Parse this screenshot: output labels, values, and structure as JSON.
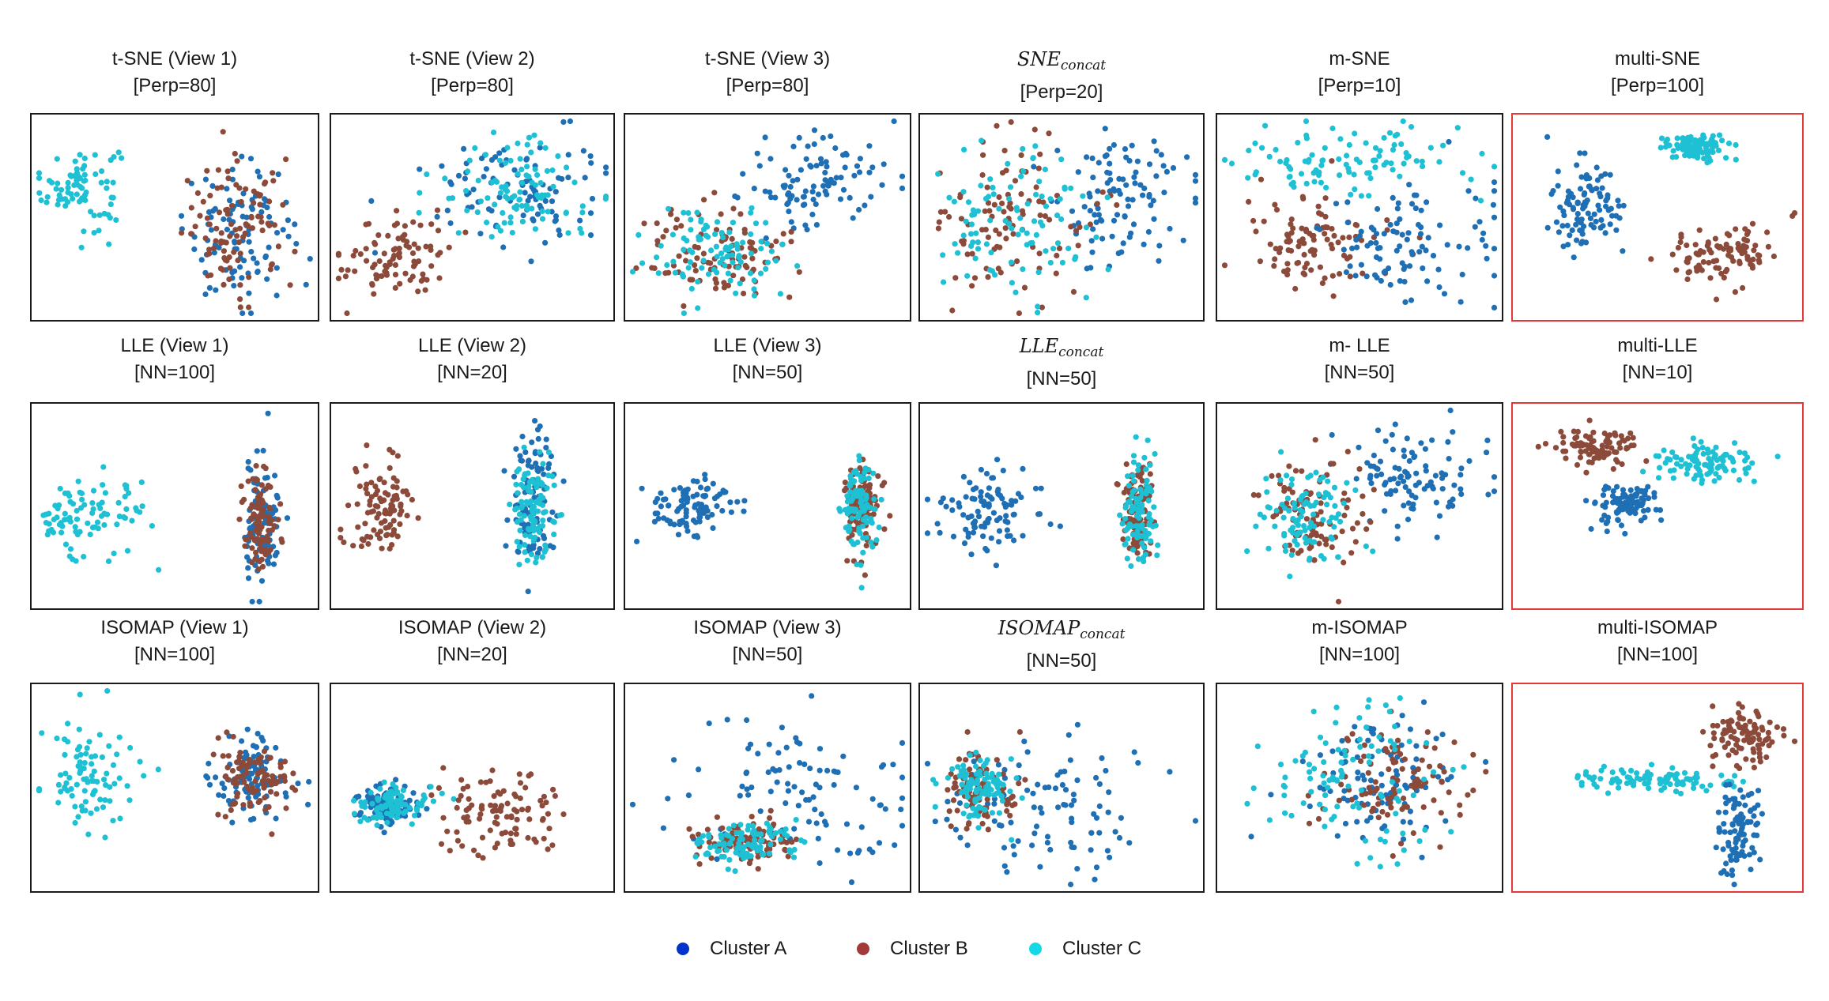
{
  "colors": {
    "A": "#1f6fb5",
    "B": "#8c4a3a",
    "C": "#1ec0d4",
    "highlight": "#e53935"
  },
  "legend": [
    {
      "name": "Cluster A",
      "color": "#0033cc"
    },
    {
      "name": "Cluster B",
      "color": "#a33a3a"
    },
    {
      "name": "Cluster C",
      "color": "#14d8e6"
    }
  ],
  "chart_data": [
    {
      "type": "scatter",
      "title": "t-SNE (View 1)",
      "param": "[Perp=80]",
      "highlight": false,
      "xlim": [
        0,
        100
      ],
      "ylim": [
        0,
        100
      ],
      "clusters": {
        "C": {
          "center": [
            16,
            66
          ],
          "spread": [
            7,
            11
          ],
          "n": 80
        },
        "A": {
          "center": [
            73,
            43
          ],
          "spread": [
            10,
            17
          ],
          "n": 100
        },
        "B": {
          "center": [
            73,
            43
          ],
          "spread": [
            10,
            17
          ],
          "n": 100
        }
      }
    },
    {
      "type": "scatter",
      "title": "t-SNE (View 2)",
      "param": "[Perp=80]",
      "highlight": false,
      "xlim": [
        0,
        100
      ],
      "ylim": [
        0,
        100
      ],
      "clusters": {
        "B": {
          "center": [
            22,
            30
          ],
          "spread": [
            10,
            11
          ],
          "n": 90
        },
        "A": {
          "center": [
            66,
            64
          ],
          "spread": [
            16,
            14
          ],
          "n": 100
        },
        "C": {
          "center": [
            66,
            64
          ],
          "spread": [
            16,
            14
          ],
          "n": 100
        }
      }
    },
    {
      "type": "scatter",
      "title": "t-SNE (View 3)",
      "param": "[Perp=80]",
      "highlight": false,
      "xlim": [
        0,
        100
      ],
      "ylim": [
        0,
        100
      ],
      "clusters": {
        "A": {
          "center": [
            68,
            68
          ],
          "spread": [
            15,
            13
          ],
          "n": 100
        },
        "B": {
          "center": [
            33,
            31
          ],
          "spread": [
            13,
            12
          ],
          "n": 100
        },
        "C": {
          "center": [
            33,
            31
          ],
          "spread": [
            13,
            12
          ],
          "n": 100
        }
      }
    },
    {
      "type": "scatter",
      "title": "SNE",
      "title_sub": "concat",
      "math": true,
      "param": "[Perp=20]",
      "highlight": false,
      "xlim": [
        0,
        100
      ],
      "ylim": [
        0,
        100
      ],
      "clusters": {
        "A": {
          "center": [
            70,
            58
          ],
          "spread": [
            13,
            18
          ],
          "n": 100
        },
        "B": {
          "center": [
            33,
            48
          ],
          "spread": [
            14,
            20
          ],
          "n": 100
        },
        "C": {
          "center": [
            33,
            48
          ],
          "spread": [
            14,
            20
          ],
          "n": 100
        }
      }
    },
    {
      "type": "scatter",
      "title": "m-SNE",
      "param": "[Perp=10]",
      "highlight": false,
      "xlim": [
        0,
        100
      ],
      "ylim": [
        0,
        100
      ],
      "clusters": {
        "C": {
          "center": [
            46,
            80
          ],
          "spread": [
            20,
            10
          ],
          "n": 100
        },
        "B": {
          "center": [
            33,
            37
          ],
          "spread": [
            14,
            13
          ],
          "n": 100
        },
        "A": {
          "center": [
            65,
            38
          ],
          "spread": [
            18,
            16
          ],
          "n": 100
        }
      }
    },
    {
      "type": "scatter",
      "title": "multi-SNE",
      "param": "[Perp=100]",
      "highlight": true,
      "xlim": [
        0,
        100
      ],
      "ylim": [
        0,
        100
      ],
      "clusters": {
        "C": {
          "center": [
            63,
            86
          ],
          "spread": [
            6,
            3.5
          ],
          "n": 100
        },
        "A": {
          "center": [
            24,
            55
          ],
          "spread": [
            6,
            10
          ],
          "n": 100
        },
        "B": {
          "center": [
            72,
            33
          ],
          "spread": [
            10,
            7
          ],
          "n": 100
        }
      }
    },
    {
      "type": "scatter",
      "title": "LLE (View 1)",
      "param": "[NN=100]",
      "highlight": false,
      "xlim": [
        0,
        100
      ],
      "ylim": [
        0,
        100
      ],
      "clusters": {
        "C": {
          "center": [
            19,
            45
          ],
          "spread": [
            10,
            10
          ],
          "n": 90
        },
        "A": {
          "center": [
            81,
            42
          ],
          "spread": [
            3,
            14
          ],
          "n": 100
        },
        "B": {
          "center": [
            81,
            42
          ],
          "spread": [
            3,
            13
          ],
          "n": 100
        }
      }
    },
    {
      "type": "scatter",
      "title": "LLE (View 2)",
      "param": "[NN=20]",
      "highlight": false,
      "xlim": [
        0,
        100
      ],
      "ylim": [
        0,
        100
      ],
      "clusters": {
        "B": {
          "center": [
            18,
            49
          ],
          "spread": [
            6,
            13
          ],
          "n": 100
        },
        "A": {
          "center": [
            72,
            55
          ],
          "spread": [
            4,
            16
          ],
          "n": 100
        },
        "C": {
          "center": [
            72,
            47
          ],
          "spread": [
            4,
            15
          ],
          "n": 100
        }
      }
    },
    {
      "type": "scatter",
      "title": "LLE (View 3)",
      "param": "[NN=50]",
      "highlight": false,
      "xlim": [
        0,
        100
      ],
      "ylim": [
        0,
        100
      ],
      "clusters": {
        "A": {
          "center": [
            22,
            50
          ],
          "spread": [
            7,
            9
          ],
          "n": 100
        },
        "B": {
          "center": [
            84,
            50
          ],
          "spread": [
            3,
            12
          ],
          "n": 100
        },
        "C": {
          "center": [
            84,
            50
          ],
          "spread": [
            3,
            12
          ],
          "n": 100
        }
      }
    },
    {
      "type": "scatter",
      "title": "LLE",
      "title_sub": "concat",
      "math": true,
      "param": "[NN=50]",
      "highlight": false,
      "xlim": [
        0,
        100
      ],
      "ylim": [
        0,
        100
      ],
      "clusters": {
        "A": {
          "center": [
            23,
            47
          ],
          "spread": [
            8,
            10
          ],
          "n": 100
        },
        "B": {
          "center": [
            78,
            46
          ],
          "spread": [
            3,
            13
          ],
          "n": 100
        },
        "C": {
          "center": [
            78,
            44
          ],
          "spread": [
            3,
            14
          ],
          "n": 100
        }
      }
    },
    {
      "type": "scatter",
      "title": "m- LLE",
      "param": "[NN=50]",
      "highlight": false,
      "xlim": [
        0,
        100
      ],
      "ylim": [
        0,
        100
      ],
      "clusters": {
        "A": {
          "center": [
            70,
            63
          ],
          "spread": [
            12,
            14
          ],
          "n": 100
        },
        "B": {
          "center": [
            34,
            45
          ],
          "spread": [
            9,
            13
          ],
          "n": 100
        },
        "C": {
          "center": [
            30,
            45
          ],
          "spread": [
            8,
            12
          ],
          "n": 100
        }
      }
    },
    {
      "type": "scatter",
      "title": "multi-LLE",
      "param": "[NN=10]",
      "highlight": true,
      "xlim": [
        0,
        100
      ],
      "ylim": [
        0,
        100
      ],
      "clusters": {
        "B": {
          "center": [
            28,
            80
          ],
          "spread": [
            8,
            5
          ],
          "n": 100
        },
        "C": {
          "center": [
            68,
            72
          ],
          "spread": [
            9,
            4.5
          ],
          "n": 100
        },
        "A": {
          "center": [
            40,
            51
          ],
          "spread": [
            6,
            6
          ],
          "n": 100
        }
      }
    },
    {
      "type": "scatter",
      "title": "ISOMAP (View 1)",
      "param": "[NN=100]",
      "highlight": false,
      "xlim": [
        0,
        100
      ],
      "ylim": [
        0,
        100
      ],
      "clusters": {
        "C": {
          "center": [
            20,
            60
          ],
          "spread": [
            8,
            14
          ],
          "n": 90
        },
        "A": {
          "center": [
            78,
            56
          ],
          "spread": [
            7,
            10
          ],
          "n": 100
        },
        "B": {
          "center": [
            78,
            56
          ],
          "spread": [
            7,
            10
          ],
          "n": 100
        }
      }
    },
    {
      "type": "scatter",
      "title": "ISOMAP (View 2)",
      "param": "[NN=20]",
      "highlight": false,
      "xlim": [
        0,
        100
      ],
      "ylim": [
        0,
        100
      ],
      "clusters": {
        "A": {
          "center": [
            20,
            41
          ],
          "spread": [
            6,
            5
          ],
          "n": 100
        },
        "C": {
          "center": [
            20,
            41
          ],
          "spread": [
            6,
            5
          ],
          "n": 100
        },
        "B": {
          "center": [
            60,
            38
          ],
          "spread": [
            12,
            11
          ],
          "n": 100
        }
      }
    },
    {
      "type": "scatter",
      "title": "ISOMAP (View 3)",
      "param": "[NN=50]",
      "highlight": false,
      "xlim": [
        0,
        100
      ],
      "ylim": [
        0,
        100
      ],
      "clusters": {
        "A": {
          "center": [
            62,
            48
          ],
          "spread": [
            24,
            17
          ],
          "n": 100
        },
        "B": {
          "center": [
            42,
            22
          ],
          "spread": [
            10,
            5
          ],
          "n": 100
        },
        "C": {
          "center": [
            42,
            22
          ],
          "spread": [
            10,
            5
          ],
          "n": 100
        }
      }
    },
    {
      "type": "scatter",
      "title": "ISOMAP",
      "title_sub": "concat",
      "math": true,
      "param": "[NN=50]",
      "highlight": false,
      "xlim": [
        0,
        100
      ],
      "ylim": [
        0,
        100
      ],
      "clusters": {
        "A": {
          "center": [
            45,
            40
          ],
          "spread": [
            20,
            18
          ],
          "n": 100
        },
        "B": {
          "center": [
            20,
            50
          ],
          "spread": [
            6,
            9
          ],
          "n": 100
        },
        "C": {
          "center": [
            20,
            50
          ],
          "spread": [
            6,
            9
          ],
          "n": 100
        }
      }
    },
    {
      "type": "scatter",
      "title": "m-ISOMAP",
      "param": "[NN=100]",
      "highlight": false,
      "xlim": [
        0,
        100
      ],
      "ylim": [
        0,
        100
      ],
      "clusters": {
        "A": {
          "center": [
            57,
            53
          ],
          "spread": [
            14,
            16
          ],
          "n": 100
        },
        "B": {
          "center": [
            62,
            53
          ],
          "spread": [
            14,
            15
          ],
          "n": 100
        },
        "C": {
          "center": [
            48,
            53
          ],
          "spread": [
            18,
            18
          ],
          "n": 100
        }
      }
    },
    {
      "type": "scatter",
      "title": "multi-ISOMAP",
      "param": "[NN=100]",
      "highlight": true,
      "xlim": [
        0,
        100
      ],
      "ylim": [
        0,
        100
      ],
      "clusters": {
        "C": {
          "center": [
            50,
            54
          ],
          "spread": [
            14,
            2.5
          ],
          "n": 100
        },
        "B": {
          "center": [
            81,
            76
          ],
          "spread": [
            6,
            7
          ],
          "n": 100
        },
        "A": {
          "center": [
            78,
            27
          ],
          "spread": [
            4,
            11
          ],
          "n": 100
        }
      }
    }
  ]
}
